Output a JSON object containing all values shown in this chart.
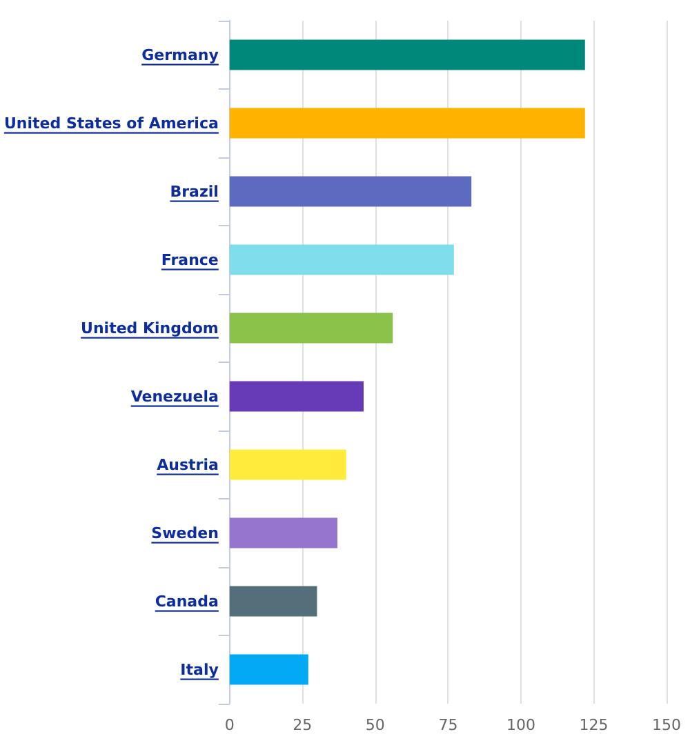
{
  "chart_data": {
    "type": "bar",
    "orientation": "horizontal",
    "categories": [
      "Germany",
      "United States of America",
      "Brazil",
      "France",
      "United Kingdom",
      "Venezuela",
      "Austria",
      "Sweden",
      "Canada",
      "Italy"
    ],
    "values": [
      122,
      122,
      83,
      77,
      56,
      46,
      40,
      37,
      30,
      27
    ],
    "colors": [
      "#00897b",
      "#ffb300",
      "#5c6bc0",
      "#80deea",
      "#8bc34a",
      "#673ab7",
      "#ffeb3b",
      "#9575cd",
      "#546e7a",
      "#03a9f4"
    ],
    "xlim": [
      0,
      150
    ],
    "xticks": [
      0,
      25,
      50,
      75,
      100,
      125,
      150
    ],
    "grid": "x"
  }
}
